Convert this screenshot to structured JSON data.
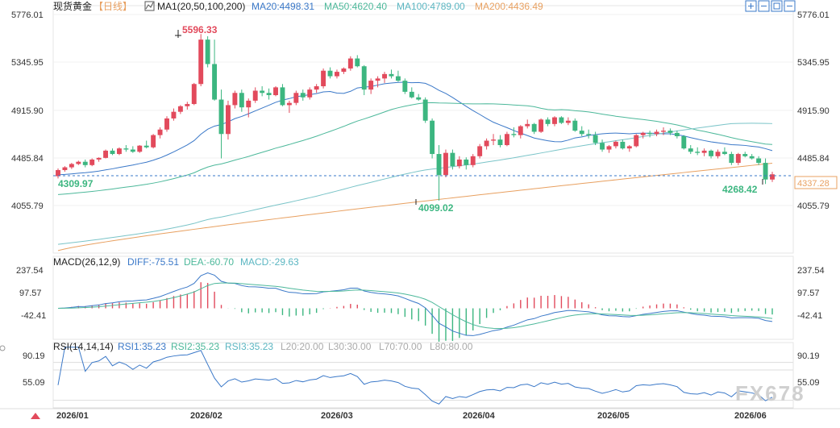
{
  "header": {
    "symbol": "现货黄金",
    "period": "【日线】",
    "ma_label": "MA1(20,50,100,200)",
    "ma20": "MA20:4498.31",
    "ma50": "MA50:4620.40",
    "ma100": "MA100:4789.00",
    "ma200": "MA200:4436.49",
    "toolbar_icons": [
      "zoom-in-icon",
      "zoom-out-icon",
      "fit-icon",
      "minus-icon"
    ]
  },
  "price_axis": {
    "ticks": [
      "5776.01",
      "5345.95",
      "4915.90",
      "4485.84",
      "4055.79"
    ],
    "current_price": "4337.28"
  },
  "annotations": {
    "high": "5596.33",
    "low": "4099.02",
    "start": "4309.97",
    "recent_low": "4268.42"
  },
  "macd": {
    "label": "MACD(26,12,9)",
    "diff": "DIFF:-75.51",
    "dea": "DEA:-60.70",
    "macd": "MACD:-29.63",
    "ticks": [
      "237.54",
      "97.57",
      "-42.41"
    ]
  },
  "rsi": {
    "label": "RSI(14,14,14)",
    "rsi1": "RSI1:35.23",
    "rsi2": "RSI2:35.23",
    "rsi3": "RSI3:35.23",
    "l20": "L20:20.00",
    "l30": "L30:30.00",
    "l70": "L70:70.00",
    "l80": "L80:80.00",
    "ticks": [
      "90.19",
      "55.09"
    ]
  },
  "x_axis": {
    "labels": [
      "2026/01",
      "2026/02",
      "2026/03",
      "2026/04",
      "2026/05",
      "2026/06"
    ]
  },
  "watermark": "FX678",
  "colors": {
    "up": "#e24a5c",
    "down": "#3cb680",
    "ma20": "#3a78c8",
    "ma50": "#4cb89a",
    "ma100": "#7ac4c8",
    "ma200": "#e8a060"
  },
  "chart_data": {
    "type": "candlestick",
    "title": "现货黄金【日线】",
    "x": [
      "2026/01",
      "2026/02",
      "2026/03",
      "2026/04",
      "2026/05",
      "2026/06"
    ],
    "ylim": [
      3900,
      5850
    ],
    "candles": [
      [
        4320,
        4390,
        4300,
        4375
      ],
      [
        4375,
        4410,
        4360,
        4400
      ],
      [
        4400,
        4440,
        4385,
        4430
      ],
      [
        4430,
        4460,
        4420,
        4450
      ],
      [
        4450,
        4470,
        4400,
        4420
      ],
      [
        4420,
        4480,
        4410,
        4470
      ],
      [
        4470,
        4490,
        4450,
        4485
      ],
      [
        4485,
        4560,
        4480,
        4550
      ],
      [
        4550,
        4570,
        4510,
        4520
      ],
      [
        4520,
        4580,
        4510,
        4570
      ],
      [
        4570,
        4600,
        4540,
        4560
      ],
      [
        4560,
        4590,
        4530,
        4540
      ],
      [
        4540,
        4600,
        4530,
        4595
      ],
      [
        4595,
        4640,
        4570,
        4580
      ],
      [
        4580,
        4700,
        4570,
        4690
      ],
      [
        4690,
        4760,
        4660,
        4740
      ],
      [
        4740,
        4860,
        4720,
        4840
      ],
      [
        4840,
        4930,
        4820,
        4900
      ],
      [
        4900,
        4960,
        4880,
        4950
      ],
      [
        4950,
        4990,
        4920,
        4970
      ],
      [
        4970,
        5160,
        4960,
        5150
      ],
      [
        5150,
        5600,
        5130,
        5550
      ],
      [
        5550,
        5580,
        5300,
        5330
      ],
      [
        5330,
        5550,
        5000,
        5010
      ],
      [
        5010,
        5100,
        4480,
        4700
      ],
      [
        4700,
        5000,
        4650,
        4960
      ],
      [
        4960,
        5090,
        4930,
        5070
      ],
      [
        5070,
        5100,
        4900,
        4940
      ],
      [
        4940,
        5020,
        4850,
        5000
      ],
      [
        5000,
        5120,
        4980,
        5090
      ],
      [
        5090,
        5130,
        5040,
        5070
      ],
      [
        5070,
        5110,
        5010,
        5050
      ],
      [
        5050,
        5130,
        5040,
        5120
      ],
      [
        5120,
        5150,
        4950,
        4960
      ],
      [
        4960,
        5000,
        4890,
        4980
      ],
      [
        4980,
        5090,
        4960,
        5070
      ],
      [
        5070,
        5100,
        5000,
        5030
      ],
      [
        5030,
        5120,
        5010,
        5100
      ],
      [
        5100,
        5150,
        5070,
        5130
      ],
      [
        5130,
        5290,
        5110,
        5270
      ],
      [
        5270,
        5300,
        5200,
        5220
      ],
      [
        5220,
        5280,
        5200,
        5260
      ],
      [
        5260,
        5300,
        5240,
        5290
      ],
      [
        5290,
        5400,
        5270,
        5380
      ],
      [
        5380,
        5410,
        5300,
        5310
      ],
      [
        5310,
        5320,
        5050,
        5100
      ],
      [
        5100,
        5200,
        5060,
        5180
      ],
      [
        5180,
        5220,
        5120,
        5200
      ],
      [
        5200,
        5260,
        5160,
        5240
      ],
      [
        5240,
        5280,
        5200,
        5220
      ],
      [
        5220,
        5270,
        5170,
        5180
      ],
      [
        5180,
        5200,
        5060,
        5080
      ],
      [
        5080,
        5120,
        5020,
        5030
      ],
      [
        5030,
        5060,
        5000,
        5010
      ],
      [
        5010,
        5030,
        4800,
        4820
      ],
      [
        4820,
        4840,
        4480,
        4520
      ],
      [
        4520,
        4600,
        4100,
        4330
      ],
      [
        4330,
        4560,
        4310,
        4530
      ],
      [
        4530,
        4560,
        4380,
        4410
      ],
      [
        4410,
        4500,
        4390,
        4470
      ],
      [
        4470,
        4490,
        4380,
        4420
      ],
      [
        4420,
        4520,
        4400,
        4500
      ],
      [
        4500,
        4610,
        4480,
        4590
      ],
      [
        4590,
        4660,
        4560,
        4640
      ],
      [
        4640,
        4700,
        4600,
        4650
      ],
      [
        4650,
        4690,
        4580,
        4600
      ],
      [
        4600,
        4720,
        4590,
        4700
      ],
      [
        4700,
        4760,
        4670,
        4690
      ],
      [
        4690,
        4780,
        4660,
        4770
      ],
      [
        4770,
        4830,
        4750,
        4790
      ],
      [
        4790,
        4800,
        4700,
        4720
      ],
      [
        4720,
        4840,
        4710,
        4830
      ],
      [
        4830,
        4850,
        4770,
        4790
      ],
      [
        4790,
        4860,
        4770,
        4850
      ],
      [
        4850,
        4860,
        4790,
        4800
      ],
      [
        4800,
        4850,
        4780,
        4820
      ],
      [
        4820,
        4840,
        4720,
        4730
      ],
      [
        4730,
        4770,
        4680,
        4700
      ],
      [
        4700,
        4740,
        4660,
        4690
      ],
      [
        4690,
        4720,
        4600,
        4620
      ],
      [
        4620,
        4650,
        4540,
        4560
      ],
      [
        4560,
        4600,
        4530,
        4590
      ],
      [
        4590,
        4640,
        4570,
        4630
      ],
      [
        4630,
        4650,
        4560,
        4570
      ],
      [
        4570,
        4600,
        4540,
        4590
      ],
      [
        4590,
        4700,
        4580,
        4690
      ],
      [
        4690,
        4720,
        4660,
        4710
      ],
      [
        4710,
        4730,
        4670,
        4700
      ],
      [
        4700,
        4740,
        4680,
        4720
      ],
      [
        4720,
        4760,
        4690,
        4730
      ],
      [
        4730,
        4750,
        4690,
        4710
      ],
      [
        4710,
        4730,
        4660,
        4680
      ],
      [
        4680,
        4690,
        4560,
        4570
      ],
      [
        4570,
        4600,
        4520,
        4540
      ],
      [
        4540,
        4580,
        4510,
        4530
      ],
      [
        4530,
        4570,
        4500,
        4550
      ],
      [
        4550,
        4560,
        4480,
        4500
      ],
      [
        4500,
        4560,
        4480,
        4540
      ],
      [
        4540,
        4580,
        4510,
        4520
      ],
      [
        4520,
        4540,
        4420,
        4440
      ],
      [
        4440,
        4530,
        4420,
        4520
      ],
      [
        4520,
        4540,
        4490,
        4500
      ],
      [
        4500,
        4520,
        4470,
        4480
      ],
      [
        4480,
        4500,
        4420,
        4440
      ],
      [
        4440,
        4480,
        4250,
        4290
      ],
      [
        4290,
        4360,
        4268,
        4337
      ]
    ]
  }
}
